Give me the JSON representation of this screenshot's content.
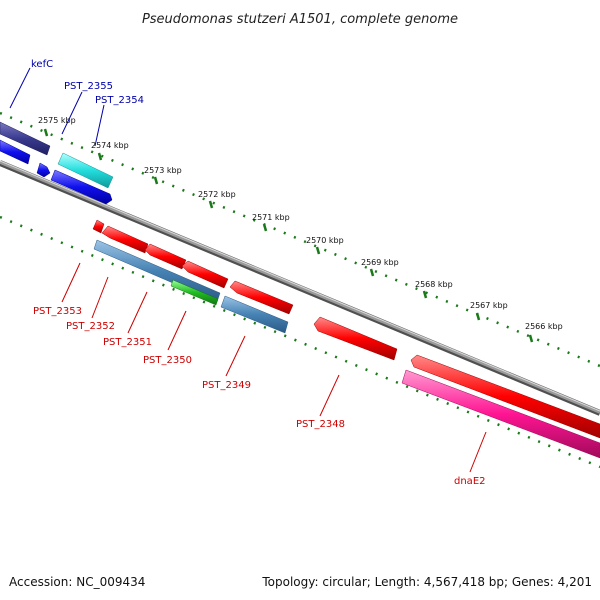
{
  "title": "Pseudomonas stutzeri A1501, complete genome",
  "footer": {
    "accession": "Accession: NC_009434",
    "summary": "Topology: circular; Length: 4,567,418 bp; Genes: 4,201"
  },
  "ticks": [
    "2575 kbp",
    "2574 kbp",
    "2573 kbp",
    "2572 kbp",
    "2571 kbp",
    "2570 kbp",
    "2569 kbp",
    "2568 kbp",
    "2567 kbp",
    "2566 kbp"
  ],
  "genes": {
    "kefC": "kefC",
    "PST_2355": "PST_2355",
    "PST_2354": "PST_2354",
    "PST_2353": "PST_2353",
    "PST_2352": "PST_2352",
    "PST_2351": "PST_2351",
    "PST_2350": "PST_2350",
    "PST_2349": "PST_2349",
    "PST_2348": "PST_2348",
    "dnaE2": "dnaE2"
  },
  "colors": {
    "backbone": "#808080",
    "tick": "#1a7a1a",
    "forward_label": "#0000aa",
    "reverse_label": "#cc0000",
    "gene_red": "#ff0000",
    "gene_blue": "#1010ee",
    "gene_cyan": "#22dddd",
    "gene_steel": "#4682b4",
    "gene_green": "#22bb22",
    "gene_navy": "#3a3a90",
    "gene_pink": "#ff1493"
  }
}
